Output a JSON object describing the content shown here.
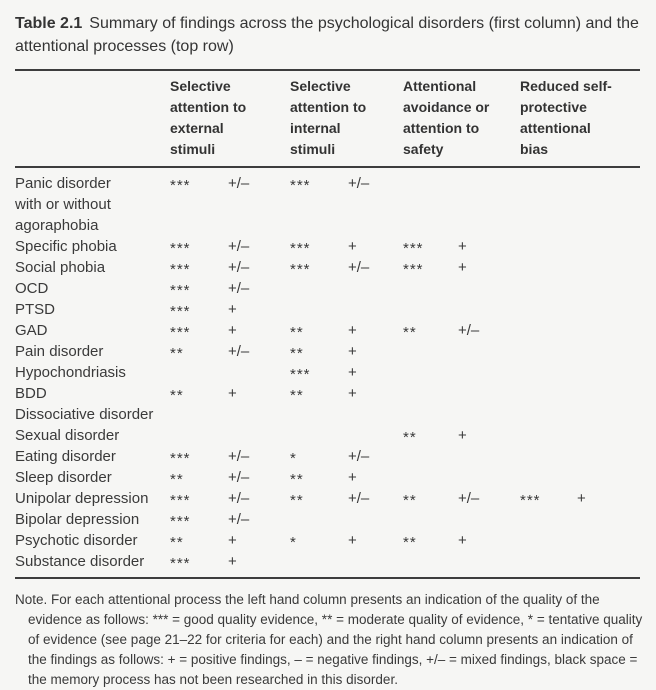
{
  "title": {
    "number": "Table 2.1",
    "text": "Summary of findings across the psychological disorders (first column) and the attentional processes (top row)"
  },
  "table": {
    "columns": [
      "Selective attention to external stimuli",
      "Selective attention to internal stimuli",
      "Attentional avoidance or attention to safety",
      "Reduced self-protective attentional bias"
    ],
    "subcolumns": [
      "quality of evidence",
      "findings"
    ],
    "rows": [
      {
        "disorder": "Panic disorder\nwith or without\nagoraphobia",
        "cells": [
          [
            "***",
            "+/–"
          ],
          [
            "***",
            "+/–"
          ],
          [
            "",
            ""
          ],
          [
            "",
            ""
          ]
        ]
      },
      {
        "disorder": "Specific phobia",
        "cells": [
          [
            "***",
            "+/–"
          ],
          [
            "***",
            "+"
          ],
          [
            "***",
            "+"
          ],
          [
            "",
            ""
          ]
        ]
      },
      {
        "disorder": "Social phobia",
        "cells": [
          [
            "***",
            "+/–"
          ],
          [
            "***",
            "+/–"
          ],
          [
            "***",
            "+"
          ],
          [
            "",
            ""
          ]
        ]
      },
      {
        "disorder": "OCD",
        "cells": [
          [
            "***",
            "+/–"
          ],
          [
            "",
            ""
          ],
          [
            "",
            ""
          ],
          [
            "",
            ""
          ]
        ]
      },
      {
        "disorder": "PTSD",
        "cells": [
          [
            "***",
            "+"
          ],
          [
            "",
            ""
          ],
          [
            "",
            ""
          ],
          [
            "",
            ""
          ]
        ]
      },
      {
        "disorder": "GAD",
        "cells": [
          [
            "***",
            "+"
          ],
          [
            "**",
            "+"
          ],
          [
            "**",
            "+/–"
          ],
          [
            "",
            ""
          ]
        ]
      },
      {
        "disorder": "Pain disorder",
        "cells": [
          [
            "**",
            "+/–"
          ],
          [
            "**",
            "+"
          ],
          [
            "",
            ""
          ],
          [
            "",
            ""
          ]
        ]
      },
      {
        "disorder": "Hypochondriasis",
        "cells": [
          [
            "",
            ""
          ],
          [
            "***",
            "+"
          ],
          [
            "",
            ""
          ],
          [
            "",
            ""
          ]
        ]
      },
      {
        "disorder": "BDD",
        "cells": [
          [
            "**",
            "+"
          ],
          [
            "**",
            "+"
          ],
          [
            "",
            ""
          ],
          [
            "",
            ""
          ]
        ]
      },
      {
        "disorder": "Dissociative disorder",
        "cells": [
          [
            "",
            ""
          ],
          [
            "",
            ""
          ],
          [
            "",
            ""
          ],
          [
            "",
            ""
          ]
        ]
      },
      {
        "disorder": "Sexual disorder",
        "cells": [
          [
            "",
            ""
          ],
          [
            "",
            ""
          ],
          [
            "**",
            "+"
          ],
          [
            "",
            ""
          ]
        ]
      },
      {
        "disorder": "Eating disorder",
        "cells": [
          [
            "***",
            "+/–"
          ],
          [
            "*",
            "+/–"
          ],
          [
            "",
            ""
          ],
          [
            "",
            ""
          ]
        ]
      },
      {
        "disorder": "Sleep disorder",
        "cells": [
          [
            "**",
            "+/–"
          ],
          [
            "**",
            "+"
          ],
          [
            "",
            ""
          ],
          [
            "",
            ""
          ]
        ]
      },
      {
        "disorder": "Unipolar depression",
        "cells": [
          [
            "***",
            "+/–"
          ],
          [
            "**",
            "+/–"
          ],
          [
            "**",
            "+/–"
          ],
          [
            "***",
            "+"
          ]
        ]
      },
      {
        "disorder": "Bipolar depression",
        "cells": [
          [
            "***",
            "+/–"
          ],
          [
            "",
            ""
          ],
          [
            "",
            ""
          ],
          [
            "",
            ""
          ]
        ]
      },
      {
        "disorder": "Psychotic disorder",
        "cells": [
          [
            "**",
            "+"
          ],
          [
            "*",
            "+"
          ],
          [
            "**",
            "+"
          ],
          [
            "",
            ""
          ]
        ]
      },
      {
        "disorder": "Substance disorder",
        "cells": [
          [
            "***",
            "+"
          ],
          [
            "",
            ""
          ],
          [
            "",
            ""
          ],
          [
            "",
            ""
          ]
        ]
      }
    ]
  },
  "note": "Note. For each attentional process the left hand column presents an indication of the quality of the evidence as follows: *** = good quality evidence, ** = moderate quality of evidence, * = tentative quality of evidence (see page 21–22 for criteria for each) and the right hand column presents an indication of the findings as follows:  + = positive findings, – = negative findings, +/– = mixed findings, black space = the memory process has not been researched in this disorder.",
  "colors": {
    "page_background": "#f6f6f4",
    "text": "#3a3a3a",
    "rule": "#3d3d3d"
  }
}
